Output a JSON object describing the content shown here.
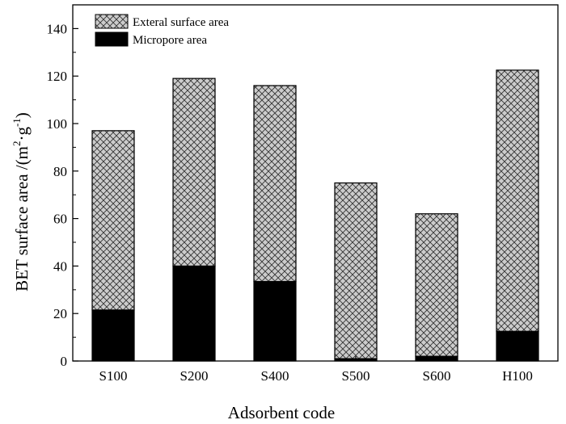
{
  "chart_data": {
    "type": "bar",
    "stacked": true,
    "categories": [
      "S100",
      "S200",
      "S400",
      "S500",
      "S600",
      "H100"
    ],
    "series": [
      {
        "name": "Micropore area",
        "values": [
          21.5,
          40.0,
          33.5,
          1.0,
          2.0,
          12.5
        ],
        "fill": "#000000"
      },
      {
        "name": "Exteral surface area",
        "values": [
          75.5,
          79.0,
          82.5,
          74.0,
          60.0,
          110.0
        ],
        "fill": "#cccccc",
        "pattern": "crosshatch"
      }
    ],
    "totals": [
      97,
      119,
      116,
      75,
      62,
      122.5
    ],
    "xlabel": "Adsorbent code",
    "ylabel_main": "BET surface area /(m",
    "ylabel_sup2": "2",
    "ylabel_mid": "·g",
    "ylabel_sup3": "-1",
    "ylabel_end": ")",
    "ylim": [
      0,
      150
    ],
    "yticks": [
      "0",
      "20",
      "40",
      "60",
      "80",
      "100",
      "120",
      "140"
    ],
    "legend_position": "top-left",
    "grid": false
  }
}
